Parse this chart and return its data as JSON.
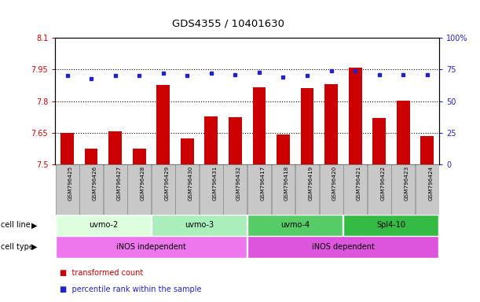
{
  "title": "GDS4355 / 10401630",
  "samples": [
    "GSM796425",
    "GSM796426",
    "GSM796427",
    "GSM796428",
    "GSM796429",
    "GSM796430",
    "GSM796431",
    "GSM796432",
    "GSM796417",
    "GSM796418",
    "GSM796419",
    "GSM796420",
    "GSM796421",
    "GSM796422",
    "GSM796423",
    "GSM796424"
  ],
  "bar_values": [
    7.648,
    7.574,
    7.657,
    7.577,
    7.878,
    7.625,
    7.727,
    7.726,
    7.865,
    7.641,
    7.862,
    7.88,
    7.96,
    7.72,
    7.803,
    7.634
  ],
  "dot_values": [
    70,
    68,
    70,
    70,
    72,
    70,
    72,
    71,
    73,
    69,
    70,
    74,
    74,
    71,
    71,
    71
  ],
  "ylim_left": [
    7.5,
    8.1
  ],
  "ylim_right": [
    0,
    100
  ],
  "yticks_left": [
    7.5,
    7.65,
    7.8,
    7.95,
    8.1
  ],
  "yticks_right": [
    0,
    25,
    50,
    75,
    100
  ],
  "ytick_labels_left": [
    "7.5",
    "7.65",
    "7.8",
    "7.95",
    "8.1"
  ],
  "ytick_labels_right": [
    "0",
    "25",
    "50",
    "75",
    "100%"
  ],
  "hlines": [
    7.65,
    7.8,
    7.95
  ],
  "bar_color": "#cc0000",
  "dot_color": "#2222cc",
  "bar_bottom": 7.5,
  "cell_lines": [
    {
      "label": "uvmo-2",
      "start": 0,
      "end": 3,
      "color": "#ddffdd"
    },
    {
      "label": "uvmo-3",
      "start": 4,
      "end": 7,
      "color": "#aaeebb"
    },
    {
      "label": "uvmo-4",
      "start": 8,
      "end": 11,
      "color": "#55cc66"
    },
    {
      "label": "Spl4-10",
      "start": 12,
      "end": 15,
      "color": "#33bb44"
    }
  ],
  "cell_types": [
    {
      "label": "iNOS independent",
      "start": 0,
      "end": 7,
      "color": "#ee77ee"
    },
    {
      "label": "iNOS dependent",
      "start": 8,
      "end": 15,
      "color": "#ee77ee"
    }
  ],
  "legend_items": [
    {
      "label": "transformed count",
      "color": "#cc0000"
    },
    {
      "label": "percentile rank within the sample",
      "color": "#2222cc"
    }
  ],
  "ylabel_left_color": "#cc0000",
  "ylabel_right_color": "#2222cc",
  "sample_box_color": "#c8c8c8",
  "sample_box_edge": "#888888"
}
